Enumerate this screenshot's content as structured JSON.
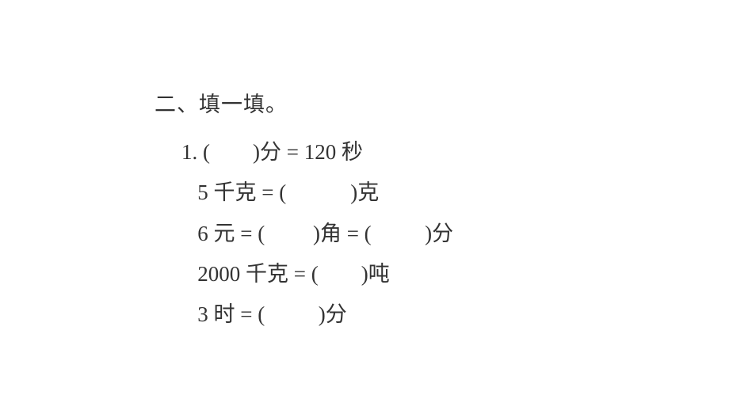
{
  "section": {
    "title": "二、填一填。"
  },
  "problem": {
    "number": "1.",
    "lines": [
      {
        "text": "1. (        )分 = 120 秒"
      },
      {
        "text": "   5 千克 = (            )克"
      },
      {
        "text": "   6 元 = (         )角 = (          )分"
      },
      {
        "text": "   2000 千克 = (        )吨"
      },
      {
        "text": "   3 时 = (          )分"
      }
    ]
  },
  "typography": {
    "font_family": "SimSun",
    "font_size_pt": 20,
    "text_color": "#333333",
    "background_color": "#ffffff",
    "line_height": 1.9
  }
}
